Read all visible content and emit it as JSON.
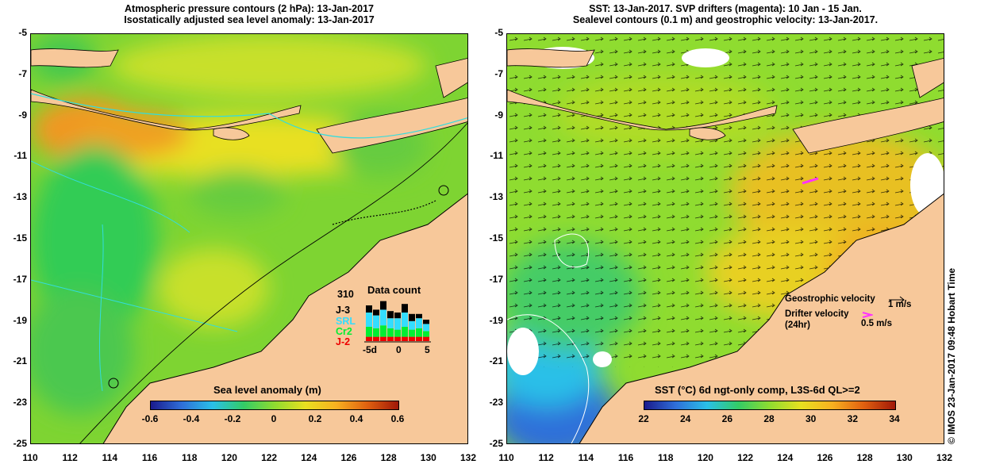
{
  "left_panel": {
    "title_line1": "Atmospheric pressure contours (2 hPa): 13-Jan-2017",
    "title_line2": "Isostatically adjusted sea level anomaly: 13-Jan-2017",
    "y_ticks": [
      "-5",
      "-7",
      "-9",
      "-11",
      "-13",
      "-15",
      "-17",
      "-19",
      "-21",
      "-23",
      "-25"
    ],
    "x_ticks": [
      "110",
      "112",
      "114",
      "116",
      "118",
      "120",
      "122",
      "124",
      "126",
      "128",
      "130",
      "132"
    ],
    "colorbar": {
      "title": "Sea level anomaly (m)",
      "labels": [
        "-0.6",
        "-0.4",
        "-0.2",
        "0",
        "0.2",
        "0.4",
        "0.6"
      ],
      "colors": [
        "#1a1a8c",
        "#2f6fd9",
        "#2ac0e8",
        "#33cc66",
        "#8fdc30",
        "#e8e020",
        "#f8b020",
        "#e06010",
        "#a01808"
      ]
    },
    "data_count": {
      "title": "Data count",
      "max": "310",
      "missions": [
        {
          "name": "J-3",
          "color": "#000000"
        },
        {
          "name": "SRL",
          "color": "#33ddff"
        },
        {
          "name": "Cr2",
          "color": "#00ee33"
        },
        {
          "name": "J-2",
          "color": "#ee0000"
        }
      ],
      "x_labels": [
        "-5d",
        "0",
        "5"
      ]
    }
  },
  "right_panel": {
    "title_line1": "SST: 13-Jan-2017. SVP drifters (magenta): 10 Jan - 15 Jan.",
    "title_line2": "Sealevel contours (0.1 m) and geostrophic velocity: 13-Jan-2017.",
    "y_ticks": [
      "-5",
      "-7",
      "-9",
      "-11",
      "-13",
      "-15",
      "-17",
      "-19",
      "-21",
      "-23",
      "-25"
    ],
    "x_ticks": [
      "110",
      "112",
      "114",
      "116",
      "118",
      "120",
      "122",
      "124",
      "126",
      "128",
      "130",
      "132"
    ],
    "colorbar": {
      "title": "SST (°C) 6d ngt-only comp, L3S-6d QL>=2",
      "labels": [
        "22",
        "24",
        "26",
        "28",
        "30",
        "32",
        "34"
      ],
      "colors": [
        "#1a1a8c",
        "#2f6fd9",
        "#2ac0e8",
        "#33cc66",
        "#8fdc30",
        "#e8e020",
        "#f8b020",
        "#e06010",
        "#a01808"
      ]
    },
    "legend": {
      "geostrophic_label": "Geostrophic velocity",
      "geostrophic_scale": "1 m/s",
      "drifter_label": "Drifter velocity",
      "drifter_sub": "(24hr)",
      "drifter_scale": "0.5 m/s",
      "drifter_color": "#ff33ff"
    }
  },
  "credit": "© IMOS 23-Jan-2017 09:48 Hobart Time",
  "colors": {
    "land": "#f7c89a",
    "coast": "#000000",
    "cloud": "#ffffff"
  }
}
